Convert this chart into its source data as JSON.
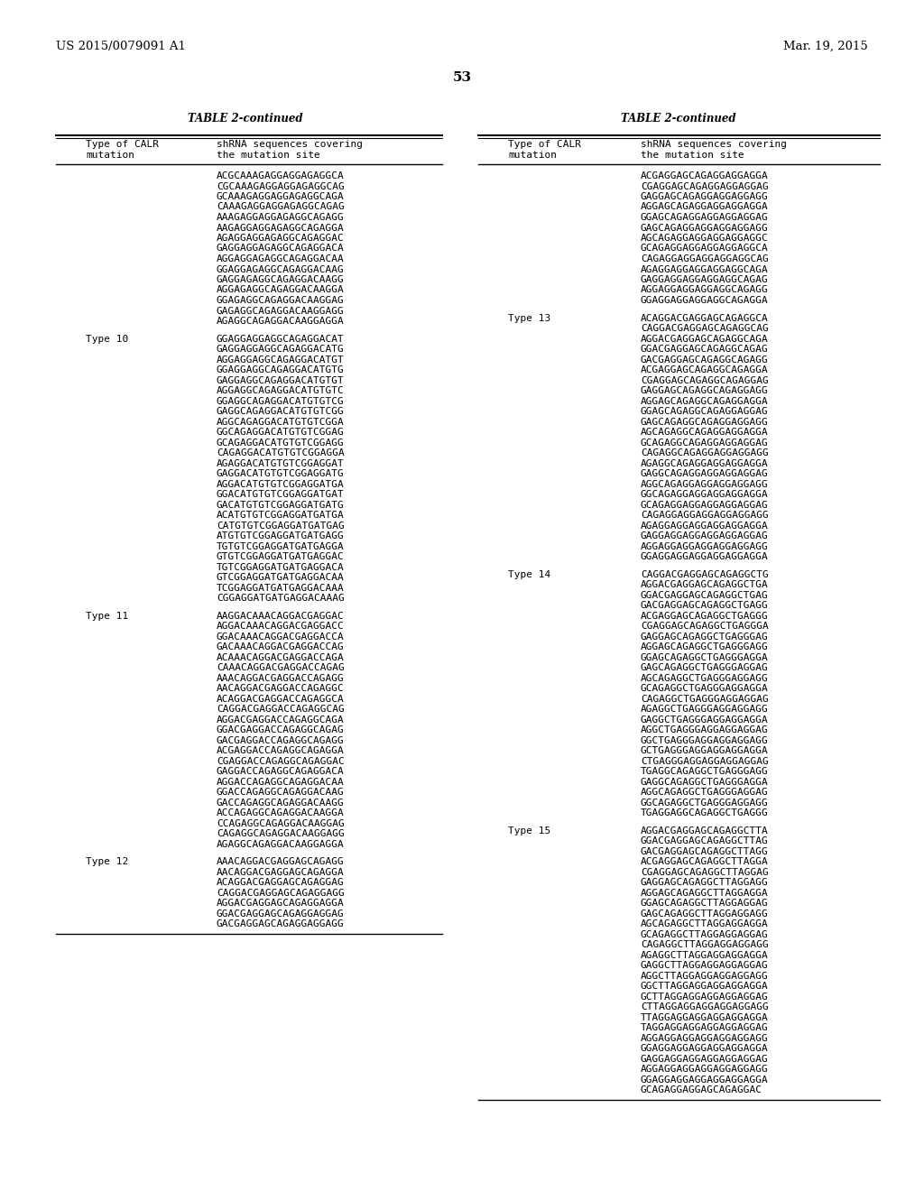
{
  "page_num": "53",
  "header_left": "US 2015/0079091 A1",
  "header_right": "Mar. 19, 2015",
  "table_title": "TABLE 2-continued",
  "col1_header_line1": "Type of CALR",
  "col1_header_line2": "mutation",
  "col2_header_line1": "shRNA sequences covering",
  "col2_header_line2": "the mutation site",
  "background": "#ffffff",
  "left_col_data": [
    {
      "type": "",
      "sequences": [
        "ACGCAAAGAGGAGGAGAGGCA",
        "CGCAAAGAGGAGGAGAGGCAG",
        "GCAAAGAGGAGGAGAGGCAGA",
        "CAAAGAGGAGGAGAGGCAGAG",
        "AAAGAGGAGGAGAGGCAGAGG",
        "AAGAGGAGGAGAGGCAGAGGA",
        "AGAGGAGGAGAGGCAGAGGAC",
        "GAGGAGGAGAGGCAGAGGACA",
        "AGGAGGAGAGGCAGAGGACAA",
        "GGAGGAGAGGCAGAGGACAAG",
        "GAGGAGAGGCAGAGGACAAGG",
        "AGGAGAGGCAGAGGACAAGGA",
        "GGAGAGGCAGAGGACAAGGAG",
        "GAGAGGCAGAGGACAAGGAGG",
        "AGAGGCAGAGGACAAGGAGGA"
      ]
    },
    {
      "type": "Type 10",
      "sequences": [
        "GGAGGAGGAGGCAGAGGACAT",
        "GAGGAGGAGGCAGAGGACATG",
        "AGGAGGAGGCAGAGGACATGT",
        "GGAGGAGGCAGAGGACATGTG",
        "GAGGAGGCAGAGGACATGTGT",
        "AGGAGGCAGAGGACATGTGTC",
        "GGAGGCAGAGGACATGTGTCG",
        "GAGGCAGAGGACATGTGTCGG",
        "AGGCAGAGGACATGTGTCGGA",
        "GGCAGAGGACATGTGTCGGAG",
        "GCAGAGGACATGTGTCGGAGG",
        "CAGAGGACATGTGTCGGAGGA",
        "AGAGGACATGTGTCGGAGGAT",
        "GAGGACATGTGTCGGAGGATG",
        "AGGACATGTGTCGGAGGATGA",
        "GGACATGTGTCGGAGGATGAT",
        "GACATGTGTCGGAGGATGATG",
        "ACATGTGTCGGAGGATGATGA",
        "CATGTGTCGGAGGATGATGAG",
        "ATGTGTCGGAGGATGATGAGG",
        "TGTGTCGGAGGATGATGAGGA",
        "GTGTCGGAGGATGATGAGGAC",
        "TGTCGGAGGATGATGAGGACA",
        "GTCGGAGGATGATGAGGACAA",
        "TCGGAGGATGATGAGGACAAA",
        "CGGAGGATGATGAGGACAAAG"
      ]
    },
    {
      "type": "Type 11",
      "sequences": [
        "AAGGACAAACAGGACGAGGAC",
        "AGGACAAACAGGACGAGGACC",
        "GGACAAACAGGACGAGGACCA",
        "GACAAACAGGACGAGGACCAG",
        "ACAAACAGGACGAGGACCAGA",
        "CAAACAGGACGAGGACCAGAG",
        "AAACAGGACGAGGACCAGAGG",
        "AACAGGACGAGGACCAGAGGC",
        "ACAGGACGAGGACCAGAGGCA",
        "CAGGACGAGGACCAGAGGCAG",
        "AGGACGAGGACCAGAGGCAGA",
        "GGACGAGGACCAGAGGCAGAG",
        "GACGAGGACCAGAGGCAGAGG",
        "ACGAGGACCAGAGGCAGAGGA",
        "CGAGGACCAGAGGCAGAGGAC",
        "GAGGACCAGAGGCAGAGGACA",
        "AGGACCAGAGGCAGAGGACAA",
        "GGACCAGAGGCAGAGGACAAG",
        "GACCAGAGGCAGAGGACAAGG",
        "ACCAGAGGCAGAGGACAAGGA",
        "CCAGAGGCAGAGGACAAGGAG",
        "CAGAGGCAGAGGACAAGGAGG",
        "AGAGGCAGAGGACAAGGAGGA"
      ]
    },
    {
      "type": "Type 12",
      "sequences": [
        "AAACAGGACGAGGAGCAGAGG",
        "AACAGGACGAGGAGCAGAGGA",
        "ACAGGACGAGGAGCAGAGGAG",
        "CAGGACGAGGAGCAGAGGAGG",
        "AGGACGAGGAGCAGAGGAGGA",
        "GGACGAGGAGCAGAGGAGGAG",
        "GACGAGGAGCAGAGGAGGAGG"
      ]
    }
  ],
  "right_col_data": [
    {
      "type": "",
      "sequences": [
        "ACGAGGAGCAGAGGAGGAGGA",
        "CGAGGAGCAGAGGAGGAGGAG",
        "GAGGAGCAGAGGAGGAGGAGG",
        "AGGAGCAGAGGAGGAGGAGGA",
        "GGAGCAGAGGAGGAGGAGGAG",
        "GAGCAGAGGAGGAGGAGGAGG",
        "AGCAGAGGAGGAGGAGGAGGC",
        "GCAGAGGAGGAGGAGGAGGCA",
        "CAGAGGAGGAGGAGGAGGCAG",
        "AGAGGAGGAGGAGGAGGCAGA",
        "GAGGAGGAGGAGGAGGCAGAG",
        "AGGAGGAGGAGGAGGCAGAGG",
        "GGAGGAGGAGGAGGCAGAGGA"
      ]
    },
    {
      "type": "Type 13",
      "sequences": [
        "ACAGGACGAGGAGCAGAGGCA",
        "CAGGACGAGGAGCAGAGGCAG",
        "AGGACGAGGAGCAGAGGCAGA",
        "GGACGAGGAGCAGAGGCAGAG",
        "GACGAGGAGCAGAGGCAGAGG",
        "ACGAGGAGCAGAGGCAGAGGA",
        "CGAGGAGCAGAGGCAGAGGAG",
        "GAGGAGCAGAGGCAGAGGAGG",
        "AGGAGCAGAGGCAGAGGAGGA",
        "GGAGCAGAGGCAGAGGAGGAG",
        "GAGCAGAGGCAGAGGAGGAGG",
        "AGCAGAGGCAGAGGAGGAGGA",
        "GCAGAGGCAGAGGAGGAGGAG",
        "CAGAGGCAGAGGAGGAGGAGG",
        "AGAGGCAGAGGAGGAGGAGGA",
        "GAGGCAGAGGAGGAGGAGGAG",
        "AGGCAGAGGAGGAGGAGGAGG",
        "GGCAGAGGAGGAGGAGGAGGA",
        "GCAGAGGAGGAGGAGGAGGAG",
        "CAGAGGAGGAGGAGGAGGAGG",
        "AGAGGAGGAGGAGGAGGAGGA",
        "GAGGAGGAGGAGGAGGAGGAG",
        "AGGAGGAGGAGGAGGAGGAGG",
        "GGAGGAGGAGGAGGAGGAGGA"
      ]
    },
    {
      "type": "Type 14",
      "sequences": [
        "CAGGACGAGGAGCAGAGGCTG",
        "AGGACGAGGAGCAGAGGCTGA",
        "GGACGAGGAGCAGAGGCTGAG",
        "GACGAGGAGCAGAGGCTGAGG",
        "ACGAGGAGCAGAGGCTGAGGG",
        "CGAGGAGCAGAGGCTGAGGGA",
        "GAGGAGCAGAGGCTGAGGGAG",
        "AGGAGCAGAGGCTGAGGGAGG",
        "GGAGCAGAGGCTGAGGGAGGA",
        "GAGCAGAGGCTGAGGGAGGAG",
        "AGCAGAGGCTGAGGGAGGAGG",
        "GCAGAGGCTGAGGGAGGAGGA",
        "CAGAGGCTGAGGGAGGAGGAG",
        "AGAGGCTGAGGGAGGAGGAGG",
        "GAGGCTGAGGGAGGAGGAGGA",
        "AGGCTGAGGGAGGAGGAGGAG",
        "GGCTGAGGGAGGAGGAGGAGG",
        "GCTGAGGGAGGAGGAGGAGGA",
        "CTGAGGGAGGAGGAGGAGGAG",
        "TGAGGCAGAGGCTGAGGGAGG",
        "GAGGCAGAGGCTGAGGGAGGA",
        "AGGCAGAGGCTGAGGGAGGAG",
        "GGCAGAGGCTGAGGGAGGAGG",
        "TGAGGAGGCAGAGGCTGAGGG"
      ]
    },
    {
      "type": "Type 15",
      "sequences": [
        "AGGACGAGGAGCAGAGGCTTA",
        "GGACGAGGAGCAGAGGCTTAG",
        "GACGAGGAGCAGAGGCTTAGG",
        "ACGAGGAGCAGAGGCTTAGGA",
        "CGAGGAGCAGAGGCTTAGGAG",
        "GAGGAGCAGAGGCTTAGGAGG",
        "AGGAGCAGAGGCTTAGGAGGA",
        "GGAGCAGAGGCTTAGGAGGAG",
        "GAGCAGAGGCTTAGGAGGAGG",
        "AGCAGAGGCTTAGGAGGAGGA",
        "GCAGAGGCTTAGGAGGAGGAG",
        "CAGAGGCTTAGGAGGAGGAGG",
        "AGAGGCTTAGGAGGAGGAGGA",
        "GAGGCTTAGGAGGAGGAGGAG",
        "AGGCTTAGGAGGAGGAGGAGG",
        "GGCTTAGGAGGAGGAGGAGGA",
        "GCTTAGGAGGAGGAGGAGGAG",
        "CTTAGGAGGAGGAGGAGGAGG",
        "TTAGGAGGAGGAGGAGGAGGA",
        "TAGGAGGAGGAGGAGGAGGAG",
        "AGGAGGAGGAGGAGGAGGAGG",
        "GGAGGAGGAGGAGGAGGAGGA",
        "GAGGAGGAGGAGGAGGAGGAG",
        "AGGAGGAGGAGGAGGAGGAGG",
        "GGAGGAGGAGGAGGAGGAGGA",
        "GCAGAGGAGGAGCAGAGGAC"
      ]
    }
  ]
}
